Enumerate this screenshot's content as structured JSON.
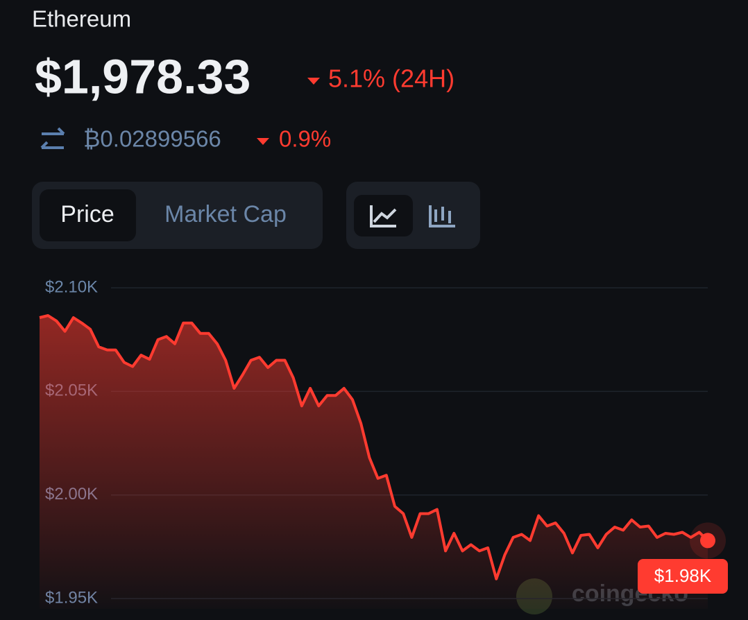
{
  "header": {
    "name": "Ethereum",
    "price": "$1,978.33",
    "change": "5.1% (24H)",
    "btc_price": "₿0.02899566",
    "btc_change": "0.9%"
  },
  "tabs": [
    "Price",
    "Market Cap"
  ],
  "watermark": "coingecko",
  "chart_data": {
    "type": "line",
    "color": "#ff3b30",
    "values": [
      2085.6,
      2086.6,
      2084,
      2079,
      2085.6,
      2083,
      2080,
      2071.5,
      2070,
      2070,
      2064,
      2062,
      2067.5,
      2065.5,
      2075,
      2076.5,
      2073,
      2083,
      2083,
      2078,
      2078,
      2073,
      2065,
      2051.5,
      2058,
      2065,
      2066.5,
      2061.5,
      2065,
      2065,
      2056.5,
      2043,
      2051.5,
      2043,
      2048,
      2048,
      2051.5,
      2046,
      2034.5,
      2018,
      2008,
      2009.5,
      1994.5,
      1991,
      1979.5,
      1991,
      1991,
      1993,
      1973,
      1981.5,
      1973,
      1976,
      1973,
      1974.5,
      1959.5,
      1971,
      1979.5,
      1981,
      1978,
      1990,
      1985,
      1986.5,
      1981.5,
      1972,
      1980.5,
      1981,
      1974.5,
      1981,
      1984.5,
      1983,
      1988,
      1984.5,
      1985,
      1979.5,
      1981.5,
      1981,
      1982,
      1979.5,
      1982,
      1978
    ],
    "ylim": [
      1945,
      2100
    ],
    "yticks": [
      {
        "value": 2100,
        "label": "$2.10K"
      },
      {
        "value": 2050,
        "label": "$2.05K"
      },
      {
        "value": 2000,
        "label": "$2.00K"
      },
      {
        "value": 1950,
        "label": "$1.95K"
      }
    ],
    "grid": true,
    "current_label": "$1.98K"
  }
}
